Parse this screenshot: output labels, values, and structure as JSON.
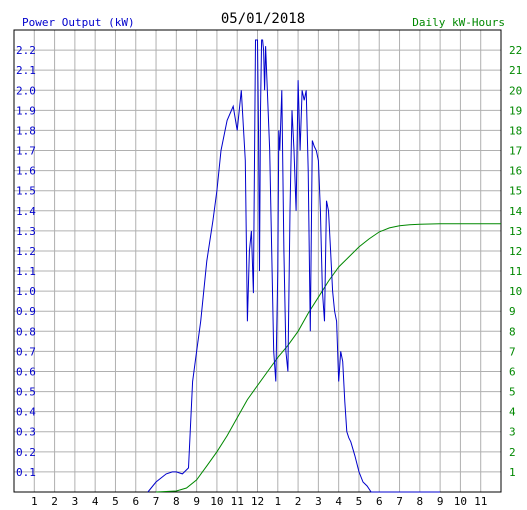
{
  "chart_data": {
    "type": "line",
    "title": "05/01/2018",
    "ylabel_left": "Power Output (kW)",
    "ylabel_right": "Daily kW-Hours",
    "colors": {
      "power": "#0000cc",
      "energy": "#008800",
      "grid": "#b0b0b0",
      "axis": "#000000"
    },
    "x_ticks": [
      "1",
      "2",
      "3",
      "4",
      "5",
      "6",
      "7",
      "8",
      "9",
      "10",
      "11",
      "12",
      "1",
      "2",
      "3",
      "4",
      "5",
      "6",
      "7",
      "8",
      "9",
      "10",
      "11"
    ],
    "x_range_hours": [
      0,
      24
    ],
    "y_left_ticks": [
      "0.1",
      "0.2",
      "0.3",
      "0.4",
      "0.5",
      "0.6",
      "0.7",
      "0.8",
      "0.9",
      "1.0",
      "1.1",
      "1.2",
      "1.3",
      "1.4",
      "1.5",
      "1.6",
      "1.7",
      "1.8",
      "1.9",
      "2.0",
      "2.1",
      "2.2"
    ],
    "y_left_range": [
      0,
      2.3
    ],
    "y_right_ticks": [
      "1",
      "2",
      "3",
      "4",
      "5",
      "6",
      "7",
      "8",
      "9",
      "10",
      "11",
      "12",
      "13",
      "14",
      "15",
      "16",
      "17",
      "18",
      "19",
      "20",
      "21",
      "22"
    ],
    "y_right_range": [
      0,
      23
    ],
    "grid": true,
    "series": [
      {
        "name": "Power Output (kW)",
        "axis": "left",
        "x": [
          6.6,
          7.0,
          7.5,
          7.8,
          8.0,
          8.3,
          8.6,
          8.8,
          9.0,
          9.2,
          9.5,
          9.8,
          10.0,
          10.2,
          10.5,
          10.8,
          11.0,
          11.2,
          11.4,
          11.5,
          11.6,
          11.7,
          11.8,
          11.9,
          12.0,
          12.05,
          12.1,
          12.15,
          12.2,
          12.25,
          12.3,
          12.35,
          12.4,
          12.6,
          12.8,
          12.9,
          13.0,
          13.05,
          13.1,
          13.2,
          13.3,
          13.4,
          13.5,
          13.6,
          13.7,
          13.8,
          13.9,
          14.0,
          14.1,
          14.2,
          14.3,
          14.4,
          14.5,
          14.6,
          14.7,
          14.8,
          14.9,
          15.0,
          15.1,
          15.2,
          15.3,
          15.4,
          15.5,
          15.6,
          15.7,
          15.8,
          15.9,
          16.0,
          16.1,
          16.2,
          16.3,
          16.4,
          16.5,
          16.6,
          16.8,
          17.0,
          17.2,
          17.4,
          17.6,
          17.8,
          18.0,
          18.1,
          18.2,
          18.3,
          18.5,
          18.7,
          18.9,
          19.0,
          19.2,
          19.4,
          19.6,
          19.8,
          20.0,
          20.2,
          20.4,
          20.6,
          20.8,
          21.0
        ],
        "values": [
          0.0,
          0.05,
          0.09,
          0.1,
          0.1,
          0.09,
          0.12,
          0.55,
          0.7,
          0.85,
          1.15,
          1.35,
          1.5,
          1.7,
          1.85,
          1.92,
          1.8,
          2.0,
          1.65,
          0.85,
          1.2,
          1.3,
          0.99,
          2.25,
          2.25,
          1.8,
          1.1,
          1.9,
          2.25,
          2.25,
          2.2,
          2.0,
          2.22,
          1.7,
          0.7,
          0.55,
          1.1,
          1.8,
          1.7,
          2.0,
          1.2,
          0.7,
          0.6,
          1.4,
          1.9,
          1.7,
          1.4,
          2.05,
          1.7,
          2.0,
          1.95,
          2.0,
          1.6,
          0.8,
          1.75,
          1.72,
          1.7,
          1.65,
          1.4,
          1.0,
          0.85,
          1.45,
          1.4,
          1.2,
          1.0,
          0.9,
          0.85,
          0.55,
          0.7,
          0.65,
          0.45,
          0.3,
          0.27,
          0.25,
          0.18,
          0.1,
          0.05,
          0.03,
          0.0,
          0.0,
          0.0,
          0.0,
          0.0,
          0.0,
          0.0,
          0.0,
          0.0,
          0.0,
          0.0,
          0.0,
          0.0,
          0.0,
          0.0,
          0.0,
          0.0,
          0.0,
          0.0,
          0.0
        ]
      },
      {
        "name": "Daily kW-Hours",
        "axis": "right",
        "x": [
          7.0,
          8.0,
          8.5,
          9.0,
          9.5,
          10.0,
          10.5,
          11.0,
          11.5,
          12.0,
          12.5,
          13.0,
          13.5,
          14.0,
          14.5,
          15.0,
          15.5,
          16.0,
          16.5,
          17.0,
          17.5,
          18.0,
          18.5,
          19.0,
          19.5,
          20.0,
          21.0,
          22.0,
          23.0,
          24.0
        ],
        "values": [
          0.0,
          0.05,
          0.2,
          0.6,
          1.3,
          2.0,
          2.8,
          3.7,
          4.6,
          5.3,
          6.0,
          6.7,
          7.3,
          8.0,
          8.9,
          9.7,
          10.5,
          11.2,
          11.7,
          12.2,
          12.6,
          12.95,
          13.15,
          13.25,
          13.3,
          13.33,
          13.35,
          13.35,
          13.35,
          13.35
        ]
      }
    ]
  }
}
